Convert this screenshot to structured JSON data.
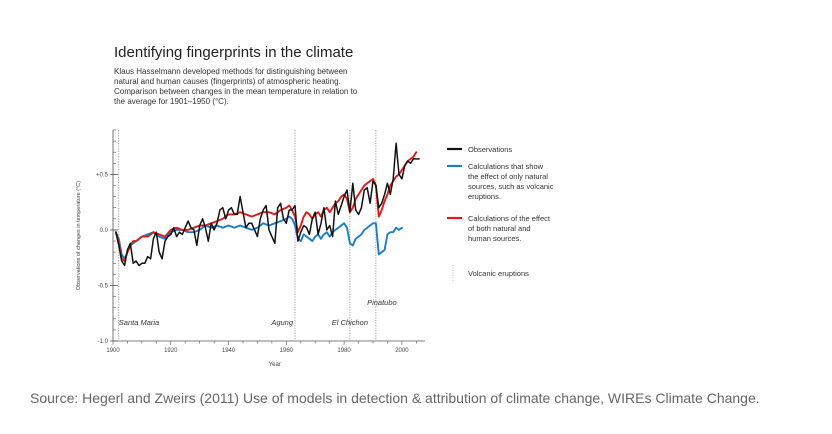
{
  "header": {
    "title": "Identifying fingerprints in the climate",
    "subtitle_lines": [
      "Klaus Hasselmann developed methods for distinguishing between",
      "natural and human causes (fingerprints) of atmospheric heating.",
      "Comparison between changes in the mean temperature in relation to",
      "the average for 1901–1950 (°C)."
    ]
  },
  "source": "Source: Hegerl and Zweirs (2011) Use of models in detection & attribution of climate change, WIREs Climate Change.",
  "chart_data": {
    "type": "line",
    "xlabel": "Year",
    "ylabel": "Observations of changes in temperature (°C)",
    "xlim": [
      1900,
      2008
    ],
    "ylim": [
      -1.0,
      0.9
    ],
    "x_ticks": [
      1900,
      1920,
      1940,
      1960,
      1980,
      2000
    ],
    "y_ticks": [
      {
        "v": 0.5,
        "label": "+0.5"
      },
      {
        "v": 0.0,
        "label": "0.0"
      },
      {
        "v": -0.5,
        "label": "-0.5"
      },
      {
        "v": -1.0,
        "label": "-1.0"
      }
    ],
    "volcanic_eruptions": [
      {
        "name": "Santa Maria",
        "year": 1902
      },
      {
        "name": "Agung",
        "year": 1963
      },
      {
        "name": "El Chichon",
        "year": 1982
      },
      {
        "name": "Pinatubo",
        "year": 1991
      }
    ],
    "series": [
      {
        "name": "Observations",
        "color": "#111111",
        "x": [
          1901,
          1902,
          1903,
          1904,
          1905,
          1906,
          1907,
          1908,
          1909,
          1910,
          1911,
          1912,
          1913,
          1914,
          1915,
          1916,
          1917,
          1918,
          1919,
          1920,
          1921,
          1922,
          1923,
          1924,
          1925,
          1926,
          1927,
          1928,
          1929,
          1930,
          1931,
          1932,
          1933,
          1934,
          1935,
          1936,
          1937,
          1938,
          1939,
          1940,
          1941,
          1942,
          1943,
          1944,
          1945,
          1946,
          1947,
          1948,
          1949,
          1950,
          1951,
          1952,
          1953,
          1954,
          1955,
          1956,
          1957,
          1958,
          1959,
          1960,
          1961,
          1962,
          1963,
          1964,
          1965,
          1966,
          1967,
          1968,
          1969,
          1970,
          1971,
          1972,
          1973,
          1974,
          1975,
          1976,
          1977,
          1978,
          1979,
          1980,
          1981,
          1982,
          1983,
          1984,
          1985,
          1986,
          1987,
          1988,
          1989,
          1990,
          1991,
          1992,
          1993,
          1994,
          1995,
          1996,
          1997,
          1998,
          1999,
          2000,
          2001,
          2002,
          2003,
          2004,
          2005,
          2006
        ],
        "values": [
          -0.02,
          -0.14,
          -0.28,
          -0.32,
          -0.18,
          -0.12,
          -0.3,
          -0.28,
          -0.32,
          -0.3,
          -0.3,
          -0.24,
          -0.26,
          -0.08,
          -0.02,
          -0.2,
          -0.26,
          -0.1,
          -0.06,
          -0.04,
          0.02,
          -0.06,
          -0.02,
          -0.04,
          0.02,
          0.08,
          0.02,
          0.0,
          -0.14,
          0.04,
          0.1,
          0.02,
          -0.1,
          0.06,
          0.0,
          0.06,
          0.18,
          0.2,
          0.1,
          0.18,
          0.2,
          0.14,
          0.14,
          0.3,
          0.16,
          0.02,
          0.06,
          0.06,
          0.0,
          -0.06,
          0.1,
          0.18,
          0.22,
          0.0,
          -0.06,
          -0.12,
          0.2,
          0.24,
          0.1,
          0.06,
          0.18,
          0.18,
          0.22,
          -0.1,
          -0.02,
          0.04,
          0.02,
          -0.04,
          0.1,
          0.16,
          -0.04,
          0.06,
          0.2,
          0.0,
          0.04,
          -0.06,
          0.26,
          0.14,
          0.22,
          0.3,
          0.36,
          0.16,
          0.42,
          0.18,
          0.14,
          0.2,
          0.36,
          0.38,
          0.24,
          0.44,
          0.4,
          0.2,
          0.24,
          0.32,
          0.42,
          0.32,
          0.46,
          0.78,
          0.5,
          0.46,
          0.58,
          0.62,
          0.6,
          0.64,
          0.64,
          0.64
        ]
      },
      {
        "name": "Calculations that show the effect of only natural sources, such as volcanic eruptions.",
        "color": "#1a7fc4",
        "x": [
          1901,
          1902,
          1903,
          1904,
          1905,
          1906,
          1907,
          1908,
          1910,
          1912,
          1914,
          1916,
          1918,
          1920,
          1922,
          1924,
          1926,
          1928,
          1930,
          1932,
          1934,
          1936,
          1938,
          1940,
          1942,
          1944,
          1946,
          1948,
          1950,
          1952,
          1954,
          1956,
          1958,
          1960,
          1961,
          1962,
          1963,
          1964,
          1965,
          1966,
          1967,
          1968,
          1969,
          1970,
          1971,
          1972,
          1973,
          1974,
          1975,
          1976,
          1977,
          1978,
          1979,
          1980,
          1981,
          1982,
          1983,
          1984,
          1985,
          1986,
          1987,
          1988,
          1989,
          1990,
          1991,
          1992,
          1993,
          1994,
          1995,
          1996,
          1997,
          1998,
          1999,
          2000
        ],
        "values": [
          -0.02,
          -0.08,
          -0.22,
          -0.26,
          -0.2,
          -0.14,
          -0.12,
          -0.1,
          -0.06,
          -0.04,
          -0.02,
          -0.06,
          -0.08,
          -0.02,
          0.0,
          0.0,
          -0.02,
          -0.02,
          0.0,
          0.04,
          0.02,
          0.04,
          0.02,
          0.04,
          0.02,
          0.04,
          0.02,
          0.0,
          0.02,
          0.06,
          0.04,
          0.06,
          0.08,
          0.1,
          0.12,
          0.1,
          0.04,
          -0.08,
          -0.1,
          -0.04,
          -0.06,
          -0.08,
          -0.1,
          -0.06,
          -0.04,
          -0.08,
          -0.04,
          -0.02,
          -0.06,
          -0.02,
          0.0,
          0.02,
          0.04,
          0.06,
          0.02,
          -0.12,
          -0.14,
          -0.08,
          -0.06,
          -0.04,
          0.0,
          0.02,
          0.04,
          0.06,
          0.06,
          -0.22,
          -0.2,
          -0.18,
          -0.04,
          -0.02,
          -0.02,
          0.02,
          0.0,
          0.02
        ]
      },
      {
        "name": "Calculations of the effect of both natural and human sources.",
        "color": "#e0191b",
        "x": [
          1901,
          1902,
          1903,
          1904,
          1905,
          1906,
          1907,
          1908,
          1910,
          1912,
          1914,
          1916,
          1918,
          1920,
          1922,
          1924,
          1926,
          1928,
          1930,
          1932,
          1934,
          1936,
          1938,
          1940,
          1942,
          1944,
          1946,
          1948,
          1950,
          1952,
          1954,
          1956,
          1958,
          1960,
          1961,
          1962,
          1963,
          1964,
          1965,
          1966,
          1967,
          1968,
          1969,
          1970,
          1971,
          1972,
          1973,
          1974,
          1975,
          1976,
          1977,
          1978,
          1979,
          1980,
          1981,
          1982,
          1983,
          1984,
          1985,
          1986,
          1987,
          1988,
          1989,
          1990,
          1991,
          1992,
          1993,
          1994,
          1995,
          1996,
          1997,
          1998,
          1999,
          2000,
          2001,
          2002,
          2003,
          2004,
          2005
        ],
        "values": [
          -0.02,
          -0.12,
          -0.26,
          -0.28,
          -0.2,
          -0.14,
          -0.1,
          -0.1,
          -0.06,
          -0.06,
          -0.02,
          -0.04,
          -0.06,
          0.0,
          0.02,
          0.0,
          0.0,
          0.02,
          0.04,
          0.04,
          0.06,
          0.08,
          0.1,
          0.14,
          0.14,
          0.16,
          0.14,
          0.12,
          0.14,
          0.16,
          0.16,
          0.14,
          0.18,
          0.2,
          0.22,
          0.18,
          0.12,
          -0.02,
          0.04,
          0.12,
          0.16,
          0.14,
          0.1,
          0.14,
          0.16,
          0.12,
          0.18,
          0.2,
          0.16,
          0.2,
          0.24,
          0.26,
          0.3,
          0.32,
          0.28,
          0.16,
          0.2,
          0.28,
          0.32,
          0.36,
          0.4,
          0.42,
          0.44,
          0.46,
          0.4,
          0.12,
          0.18,
          0.26,
          0.32,
          0.4,
          0.44,
          0.48,
          0.5,
          0.54,
          0.58,
          0.62,
          0.64,
          0.66,
          0.7
        ]
      }
    ],
    "legend": [
      {
        "lines": [
          "Observations"
        ],
        "kind": "line",
        "color": "#111111"
      },
      {
        "lines": [
          "Calculations that show",
          "the effect of only natural",
          "sources, such as volcanic",
          "eruptions."
        ],
        "kind": "line",
        "color": "#1a7fc4"
      },
      {
        "lines": [
          "Calculations of the effect",
          "of both natural and",
          "human sources."
        ],
        "kind": "line",
        "color": "#e0191b"
      },
      {
        "lines": [
          "Volcanic eruptions"
        ],
        "kind": "dotted",
        "color": "#aaaaaa"
      }
    ]
  }
}
